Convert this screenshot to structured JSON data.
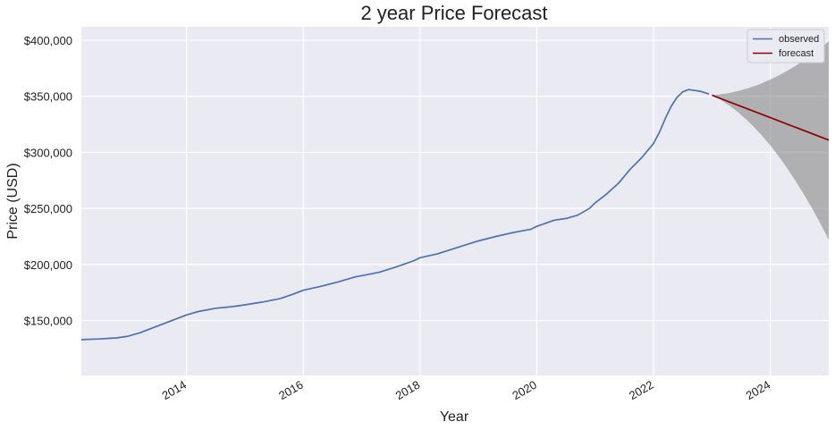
{
  "chart_data": {
    "type": "line",
    "title": "2 year Price Forecast",
    "xlabel": "Year",
    "ylabel": "Price (USD)",
    "xlim": [
      2012.2,
      2025.0
    ],
    "ylim": [
      101000,
      412000
    ],
    "x_ticks": [
      {
        "value": 2014,
        "label": "2014"
      },
      {
        "value": 2016,
        "label": "2016"
      },
      {
        "value": 2018,
        "label": "2018"
      },
      {
        "value": 2020,
        "label": "2020"
      },
      {
        "value": 2022,
        "label": "2022"
      },
      {
        "value": 2024,
        "label": "2024"
      }
    ],
    "y_ticks": [
      {
        "value": 150000,
        "label": "$150,000"
      },
      {
        "value": 200000,
        "label": "$200,000"
      },
      {
        "value": 250000,
        "label": "$250,000"
      },
      {
        "value": 300000,
        "label": "$300,000"
      },
      {
        "value": 350000,
        "label": "$350,000"
      },
      {
        "value": 400000,
        "label": "$400,000"
      }
    ],
    "grid": true,
    "legend_position": "top-right",
    "series": [
      {
        "name": "observed",
        "color": "#4c72b0",
        "x": [
          2012.2,
          2012.5,
          2012.8,
          2013.0,
          2013.2,
          2013.4,
          2013.6,
          2013.8,
          2014.0,
          2014.2,
          2014.5,
          2014.8,
          2015.0,
          2015.3,
          2015.6,
          2015.8,
          2016.0,
          2016.3,
          2016.6,
          2016.9,
          2017.0,
          2017.3,
          2017.6,
          2017.9,
          2018.0,
          2018.3,
          2018.6,
          2018.9,
          2019.0,
          2019.3,
          2019.6,
          2019.9,
          2020.0,
          2020.3,
          2020.5,
          2020.7,
          2020.9,
          2021.0,
          2021.2,
          2021.4,
          2021.6,
          2021.8,
          2022.0,
          2022.1,
          2022.2,
          2022.3,
          2022.4,
          2022.5,
          2022.6,
          2022.8,
          2022.95
        ],
        "y": [
          133000,
          133500,
          134500,
          136000,
          139000,
          143000,
          147000,
          151000,
          155000,
          158000,
          161000,
          162500,
          164000,
          166500,
          169500,
          173000,
          177000,
          180500,
          184500,
          189000,
          190000,
          193000,
          198000,
          203500,
          206000,
          209500,
          214500,
          219500,
          221000,
          225000,
          228500,
          231500,
          234000,
          239500,
          241000,
          244000,
          250000,
          255000,
          263000,
          272500,
          285000,
          295500,
          308000,
          318000,
          330000,
          341000,
          349000,
          354000,
          356000,
          354500,
          352000
        ]
      },
      {
        "name": "forecast",
        "color": "#8b0000",
        "x": [
          2023.0,
          2024.0,
          2025.0
        ],
        "y": [
          351000,
          331000,
          311000
        ],
        "ci_upper": [
          351000,
          365000,
          399000
        ],
        "ci_lower": [
          351000,
          306000,
          222000
        ],
        "ci_color": "#808080"
      }
    ]
  }
}
